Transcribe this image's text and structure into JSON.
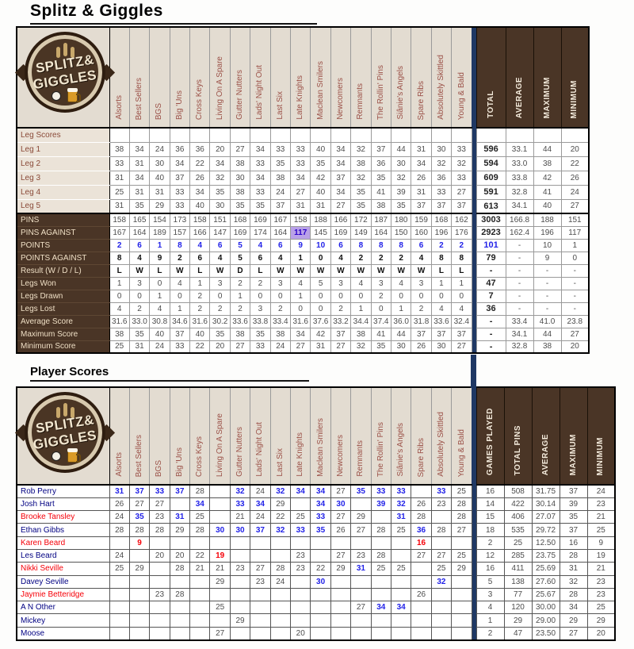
{
  "page": {
    "title": "Splitz & Giggles",
    "player_scores_title": "Player Scores"
  },
  "logo": {
    "line1": "SPLITZ&",
    "line2": "GIGGLES"
  },
  "teams": [
    "Alsorts",
    "Best Sellers",
    "BGS",
    "Big 'Uns",
    "Cross Keys",
    "Living On A Spare",
    "Gutter Nutters",
    "Lads' Night Out",
    "Last Six",
    "Late Knights",
    "Maclean Smilers",
    "Newcomers",
    "Remnants",
    "The Rollin' Pins",
    "Siânie's Angels",
    "Spare Ribs",
    "Absolutely Skittled",
    "Young & Bald"
  ],
  "colors": {
    "accent_navy": "#1F3864",
    "dark_brown": "#4A3526",
    "beige": "#E3DCD1",
    "highlight_purple": "#B9A1E8",
    "blue_value": "#2222E8",
    "red_value": "#F50008"
  },
  "leg_table": {
    "section_label": "Leg Scores",
    "summary_headers": [
      "TOTAL",
      "AVERAGE",
      "MAXIMUM",
      "MINIMUM"
    ],
    "rows": [
      {
        "label": "Leg 1",
        "lclass": "beige",
        "values": [
          "38",
          "34",
          "24",
          "36",
          "36",
          "20",
          "27",
          "34",
          "33",
          "33",
          "40",
          "34",
          "32",
          "37",
          "44",
          "31",
          "30",
          "33"
        ],
        "summary": [
          "596",
          "33.1",
          "44",
          "20"
        ]
      },
      {
        "label": "Leg 2",
        "lclass": "beige",
        "values": [
          "33",
          "31",
          "30",
          "34",
          "22",
          "34",
          "38",
          "33",
          "35",
          "33",
          "35",
          "34",
          "38",
          "36",
          "30",
          "34",
          "32",
          "32"
        ],
        "summary": [
          "594",
          "33.0",
          "38",
          "22"
        ]
      },
      {
        "label": "Leg 3",
        "lclass": "beige",
        "values": [
          "31",
          "34",
          "40",
          "37",
          "26",
          "32",
          "30",
          "34",
          "38",
          "34",
          "42",
          "37",
          "32",
          "35",
          "32",
          "26",
          "36",
          "33"
        ],
        "summary": [
          "609",
          "33.8",
          "42",
          "26"
        ]
      },
      {
        "label": "Leg 4",
        "lclass": "beige",
        "values": [
          "25",
          "31",
          "31",
          "33",
          "34",
          "35",
          "38",
          "33",
          "24",
          "27",
          "40",
          "34",
          "35",
          "41",
          "39",
          "31",
          "33",
          "27"
        ],
        "summary": [
          "591",
          "32.8",
          "41",
          "24"
        ]
      },
      {
        "label": "Leg 5",
        "lclass": "beige",
        "values": [
          "31",
          "35",
          "29",
          "33",
          "40",
          "30",
          "35",
          "35",
          "37",
          "31",
          "31",
          "27",
          "35",
          "38",
          "35",
          "37",
          "37",
          "37"
        ],
        "summary": [
          "613",
          "34.1",
          "40",
          "27"
        ]
      },
      {
        "label": "PINS",
        "lclass": "dark",
        "thick": true,
        "values": [
          "158",
          "165",
          "154",
          "173",
          "158",
          "151",
          "168",
          "169",
          "167",
          "158",
          "188",
          "166",
          "172",
          "187",
          "180",
          "159",
          "168",
          "162"
        ],
        "summary": [
          "3003",
          "166.8",
          "188",
          "151"
        ]
      },
      {
        "label": "PINS AGAINST",
        "lclass": "dark",
        "values": [
          "167",
          "164",
          "189",
          "157",
          "166",
          "147",
          "169",
          "174",
          "164",
          "117",
          "145",
          "169",
          "149",
          "164",
          "150",
          "160",
          "196",
          "176"
        ],
        "overrides": {
          "9": "hl"
        },
        "summary": [
          "2923",
          "162.4",
          "196",
          "117"
        ]
      },
      {
        "label": "POINTS",
        "lclass": "dark",
        "vclass": "blue",
        "tclass": "blue",
        "values": [
          "2",
          "6",
          "1",
          "8",
          "4",
          "6",
          "5",
          "4",
          "6",
          "9",
          "10",
          "6",
          "8",
          "8",
          "8",
          "6",
          "2",
          "2"
        ],
        "summary": [
          "101",
          "-",
          "10",
          "1"
        ]
      },
      {
        "label": "POINTS AGAINST",
        "lclass": "dark",
        "vclass": "bold",
        "values": [
          "8",
          "4",
          "9",
          "2",
          "6",
          "4",
          "5",
          "6",
          "4",
          "1",
          "0",
          "4",
          "2",
          "2",
          "2",
          "4",
          "8",
          "8"
        ],
        "summary": [
          "79",
          "-",
          "9",
          "0"
        ]
      },
      {
        "label": "Result (W / D / L)",
        "lclass": "dark",
        "vclass": "bold",
        "values": [
          "L",
          "W",
          "L",
          "W",
          "L",
          "W",
          "D",
          "L",
          "W",
          "W",
          "W",
          "W",
          "W",
          "W",
          "W",
          "W",
          "L",
          "L"
        ],
        "summary": [
          "-",
          "-",
          "-",
          "-"
        ]
      },
      {
        "label": "Legs Won",
        "lclass": "dark",
        "values": [
          "1",
          "3",
          "0",
          "4",
          "1",
          "3",
          "2",
          "2",
          "3",
          "4",
          "5",
          "3",
          "4",
          "3",
          "4",
          "3",
          "1",
          "1"
        ],
        "summary": [
          "47",
          "-",
          "-",
          "-"
        ]
      },
      {
        "label": "Legs Drawn",
        "lclass": "dark",
        "values": [
          "0",
          "0",
          "1",
          "0",
          "2",
          "0",
          "1",
          "0",
          "0",
          "1",
          "0",
          "0",
          "0",
          "2",
          "0",
          "0",
          "0",
          "0"
        ],
        "summary": [
          "7",
          "-",
          "-",
          "-"
        ]
      },
      {
        "label": "Legs Lost",
        "lclass": "dark",
        "values": [
          "4",
          "2",
          "4",
          "1",
          "2",
          "2",
          "2",
          "3",
          "2",
          "0",
          "0",
          "2",
          "1",
          "0",
          "1",
          "2",
          "4",
          "4"
        ],
        "summary": [
          "36",
          "-",
          "-",
          "-"
        ]
      },
      {
        "label": "Average Score",
        "lclass": "dark",
        "values": [
          "31.6",
          "33.0",
          "30.8",
          "34.6",
          "31.6",
          "30.2",
          "33.6",
          "33.8",
          "33.4",
          "31.6",
          "37.6",
          "33.2",
          "34.4",
          "37.4",
          "36.0",
          "31.8",
          "33.6",
          "32.4"
        ],
        "summary": [
          "-",
          "33.4",
          "41.0",
          "23.8"
        ]
      },
      {
        "label": "Maximum Score",
        "lclass": "dark",
        "values": [
          "38",
          "35",
          "40",
          "37",
          "40",
          "35",
          "38",
          "35",
          "38",
          "34",
          "42",
          "37",
          "38",
          "41",
          "44",
          "37",
          "37",
          "37"
        ],
        "summary": [
          "-",
          "34.1",
          "44",
          "27"
        ]
      },
      {
        "label": "Minimum Score",
        "lclass": "dark",
        "values": [
          "25",
          "31",
          "24",
          "33",
          "22",
          "20",
          "27",
          "33",
          "24",
          "27",
          "31",
          "27",
          "32",
          "35",
          "30",
          "26",
          "30",
          "27"
        ],
        "summary": [
          "-",
          "32.8",
          "38",
          "20"
        ]
      }
    ]
  },
  "player_table": {
    "summary_headers": [
      "GAMES PLAYED",
      "TOTAL PINS",
      "AVERAGE",
      "MAXIMUM",
      "MINIMUM"
    ],
    "rows": [
      {
        "name": "Rob Perry",
        "nclass": "navy",
        "values": [
          "31",
          "37",
          "33",
          "37",
          "28",
          "",
          "32",
          "24",
          "32",
          "34",
          "34",
          "27",
          "35",
          "33",
          "33",
          "",
          "33",
          "25"
        ],
        "styles": [
          "b",
          "b",
          "b",
          "b",
          "",
          "",
          "b",
          "",
          "b",
          "b",
          "b",
          "",
          "b",
          "b",
          "b",
          "",
          "b",
          ""
        ],
        "summary": [
          "16",
          "508",
          "31.75",
          "37",
          "24"
        ]
      },
      {
        "name": "Josh Hart",
        "nclass": "navy",
        "values": [
          "26",
          "27",
          "27",
          "",
          "34",
          "",
          "33",
          "34",
          "29",
          "",
          "34",
          "30",
          "",
          "39",
          "32",
          "26",
          "23",
          "28"
        ],
        "styles": [
          "",
          "",
          "",
          "",
          "b",
          "",
          "b",
          "b",
          "",
          "",
          "b",
          "b",
          "",
          "b",
          "b",
          "",
          "",
          ""
        ],
        "summary": [
          "14",
          "422",
          "30.14",
          "39",
          "23"
        ]
      },
      {
        "name": "Brooke Tansley",
        "nclass": "red",
        "values": [
          "24",
          "35",
          "23",
          "31",
          "25",
          "",
          "21",
          "24",
          "22",
          "25",
          "33",
          "27",
          "29",
          "",
          "31",
          "28",
          "",
          "28"
        ],
        "styles": [
          "",
          "b",
          "",
          "b",
          "",
          "",
          "",
          "",
          "",
          "",
          "b",
          "",
          "",
          "",
          "b",
          "",
          "",
          ""
        ],
        "summary": [
          "15",
          "406",
          "27.07",
          "35",
          "21"
        ]
      },
      {
        "name": "Ethan Gibbs",
        "nclass": "navy",
        "values": [
          "28",
          "28",
          "28",
          "29",
          "28",
          "30",
          "30",
          "37",
          "32",
          "33",
          "35",
          "26",
          "27",
          "28",
          "25",
          "36",
          "28",
          "27"
        ],
        "styles": [
          "",
          "",
          "",
          "",
          "",
          "b",
          "b",
          "b",
          "b",
          "b",
          "b",
          "",
          "",
          "",
          "",
          "b",
          "",
          ""
        ],
        "summary": [
          "18",
          "535",
          "29.72",
          "37",
          "25"
        ]
      },
      {
        "name": "Karen Beard",
        "nclass": "red",
        "values": [
          "",
          "9",
          "",
          "",
          "",
          "",
          "",
          "",
          "",
          "",
          "",
          "",
          "",
          "",
          "",
          "16",
          "",
          ""
        ],
        "styles": [
          "",
          "r",
          "",
          "",
          "",
          "",
          "",
          "",
          "",
          "",
          "",
          "",
          "",
          "",
          "",
          "r",
          "",
          ""
        ],
        "summary": [
          "2",
          "25",
          "12.50",
          "16",
          "9"
        ]
      },
      {
        "name": "Les Beard",
        "nclass": "navy",
        "values": [
          "24",
          "",
          "20",
          "20",
          "22",
          "19",
          "",
          "",
          "",
          "23",
          "",
          "27",
          "23",
          "28",
          "",
          "27",
          "27",
          "25"
        ],
        "styles": [
          "",
          "",
          "",
          "",
          "",
          "r",
          "",
          "",
          "",
          "",
          "",
          "",
          "",
          "",
          "",
          "",
          "",
          ""
        ],
        "summary": [
          "12",
          "285",
          "23.75",
          "28",
          "19"
        ]
      },
      {
        "name": "Nikki Seville",
        "nclass": "red",
        "values": [
          "25",
          "29",
          "",
          "28",
          "21",
          "21",
          "23",
          "27",
          "28",
          "23",
          "22",
          "29",
          "31",
          "25",
          "25",
          "",
          "25",
          "29"
        ],
        "styles": [
          "",
          "",
          "",
          "",
          "",
          "",
          "",
          "",
          "",
          "",
          "",
          "",
          "b",
          "",
          "",
          "",
          "",
          ""
        ],
        "summary": [
          "16",
          "411",
          "25.69",
          "31",
          "21"
        ]
      },
      {
        "name": "Davey Seville",
        "nclass": "navy",
        "values": [
          "",
          "",
          "",
          "",
          "",
          "29",
          "",
          "23",
          "24",
          "",
          "30",
          "",
          "",
          "",
          "",
          "",
          "32",
          ""
        ],
        "styles": [
          "",
          "",
          "",
          "",
          "",
          "",
          "",
          "",
          "",
          "",
          "b",
          "",
          "",
          "",
          "",
          "",
          "b",
          ""
        ],
        "summary": [
          "5",
          "138",
          "27.60",
          "32",
          "23"
        ]
      },
      {
        "name": "Jaymie Betteridge",
        "nclass": "red",
        "values": [
          "",
          "",
          "23",
          "28",
          "",
          "",
          "",
          "",
          "",
          "",
          "",
          "",
          "",
          "",
          "",
          "26",
          "",
          ""
        ],
        "styles": [
          "",
          "",
          "",
          "",
          "",
          "",
          "",
          "",
          "",
          "",
          "",
          "",
          "",
          "",
          "",
          "",
          "",
          ""
        ],
        "summary": [
          "3",
          "77",
          "25.67",
          "28",
          "23"
        ]
      },
      {
        "name": "A N Other",
        "nclass": "navy",
        "values": [
          "",
          "",
          "",
          "",
          "",
          "25",
          "",
          "",
          "",
          "",
          "",
          "",
          "27",
          "34",
          "34",
          "",
          "",
          ""
        ],
        "styles": [
          "",
          "",
          "",
          "",
          "",
          "",
          "",
          "",
          "",
          "",
          "",
          "",
          "",
          "b",
          "b",
          "",
          "",
          ""
        ],
        "summary": [
          "4",
          "120",
          "30.00",
          "34",
          "25"
        ]
      },
      {
        "name": "Mickey",
        "nclass": "navy",
        "values": [
          "",
          "",
          "",
          "",
          "",
          "",
          "29",
          "",
          "",
          "",
          "",
          "",
          "",
          "",
          "",
          "",
          "",
          ""
        ],
        "styles": [
          "",
          "",
          "",
          "",
          "",
          "",
          "",
          "",
          "",
          "",
          "",
          "",
          "",
          "",
          "",
          "",
          "",
          ""
        ],
        "summary": [
          "1",
          "29",
          "29.00",
          "29",
          "29"
        ]
      },
      {
        "name": "Moose",
        "nclass": "navy",
        "values": [
          "",
          "",
          "",
          "",
          "",
          "27",
          "",
          "",
          "",
          "20",
          "",
          "",
          "",
          "",
          "",
          "",
          "",
          ""
        ],
        "styles": [
          "",
          "",
          "",
          "",
          "",
          "",
          "",
          "",
          "",
          "",
          "",
          "",
          "",
          "",
          "",
          "",
          "",
          ""
        ],
        "summary": [
          "2",
          "47",
          "23.50",
          "27",
          "20"
        ]
      }
    ]
  }
}
